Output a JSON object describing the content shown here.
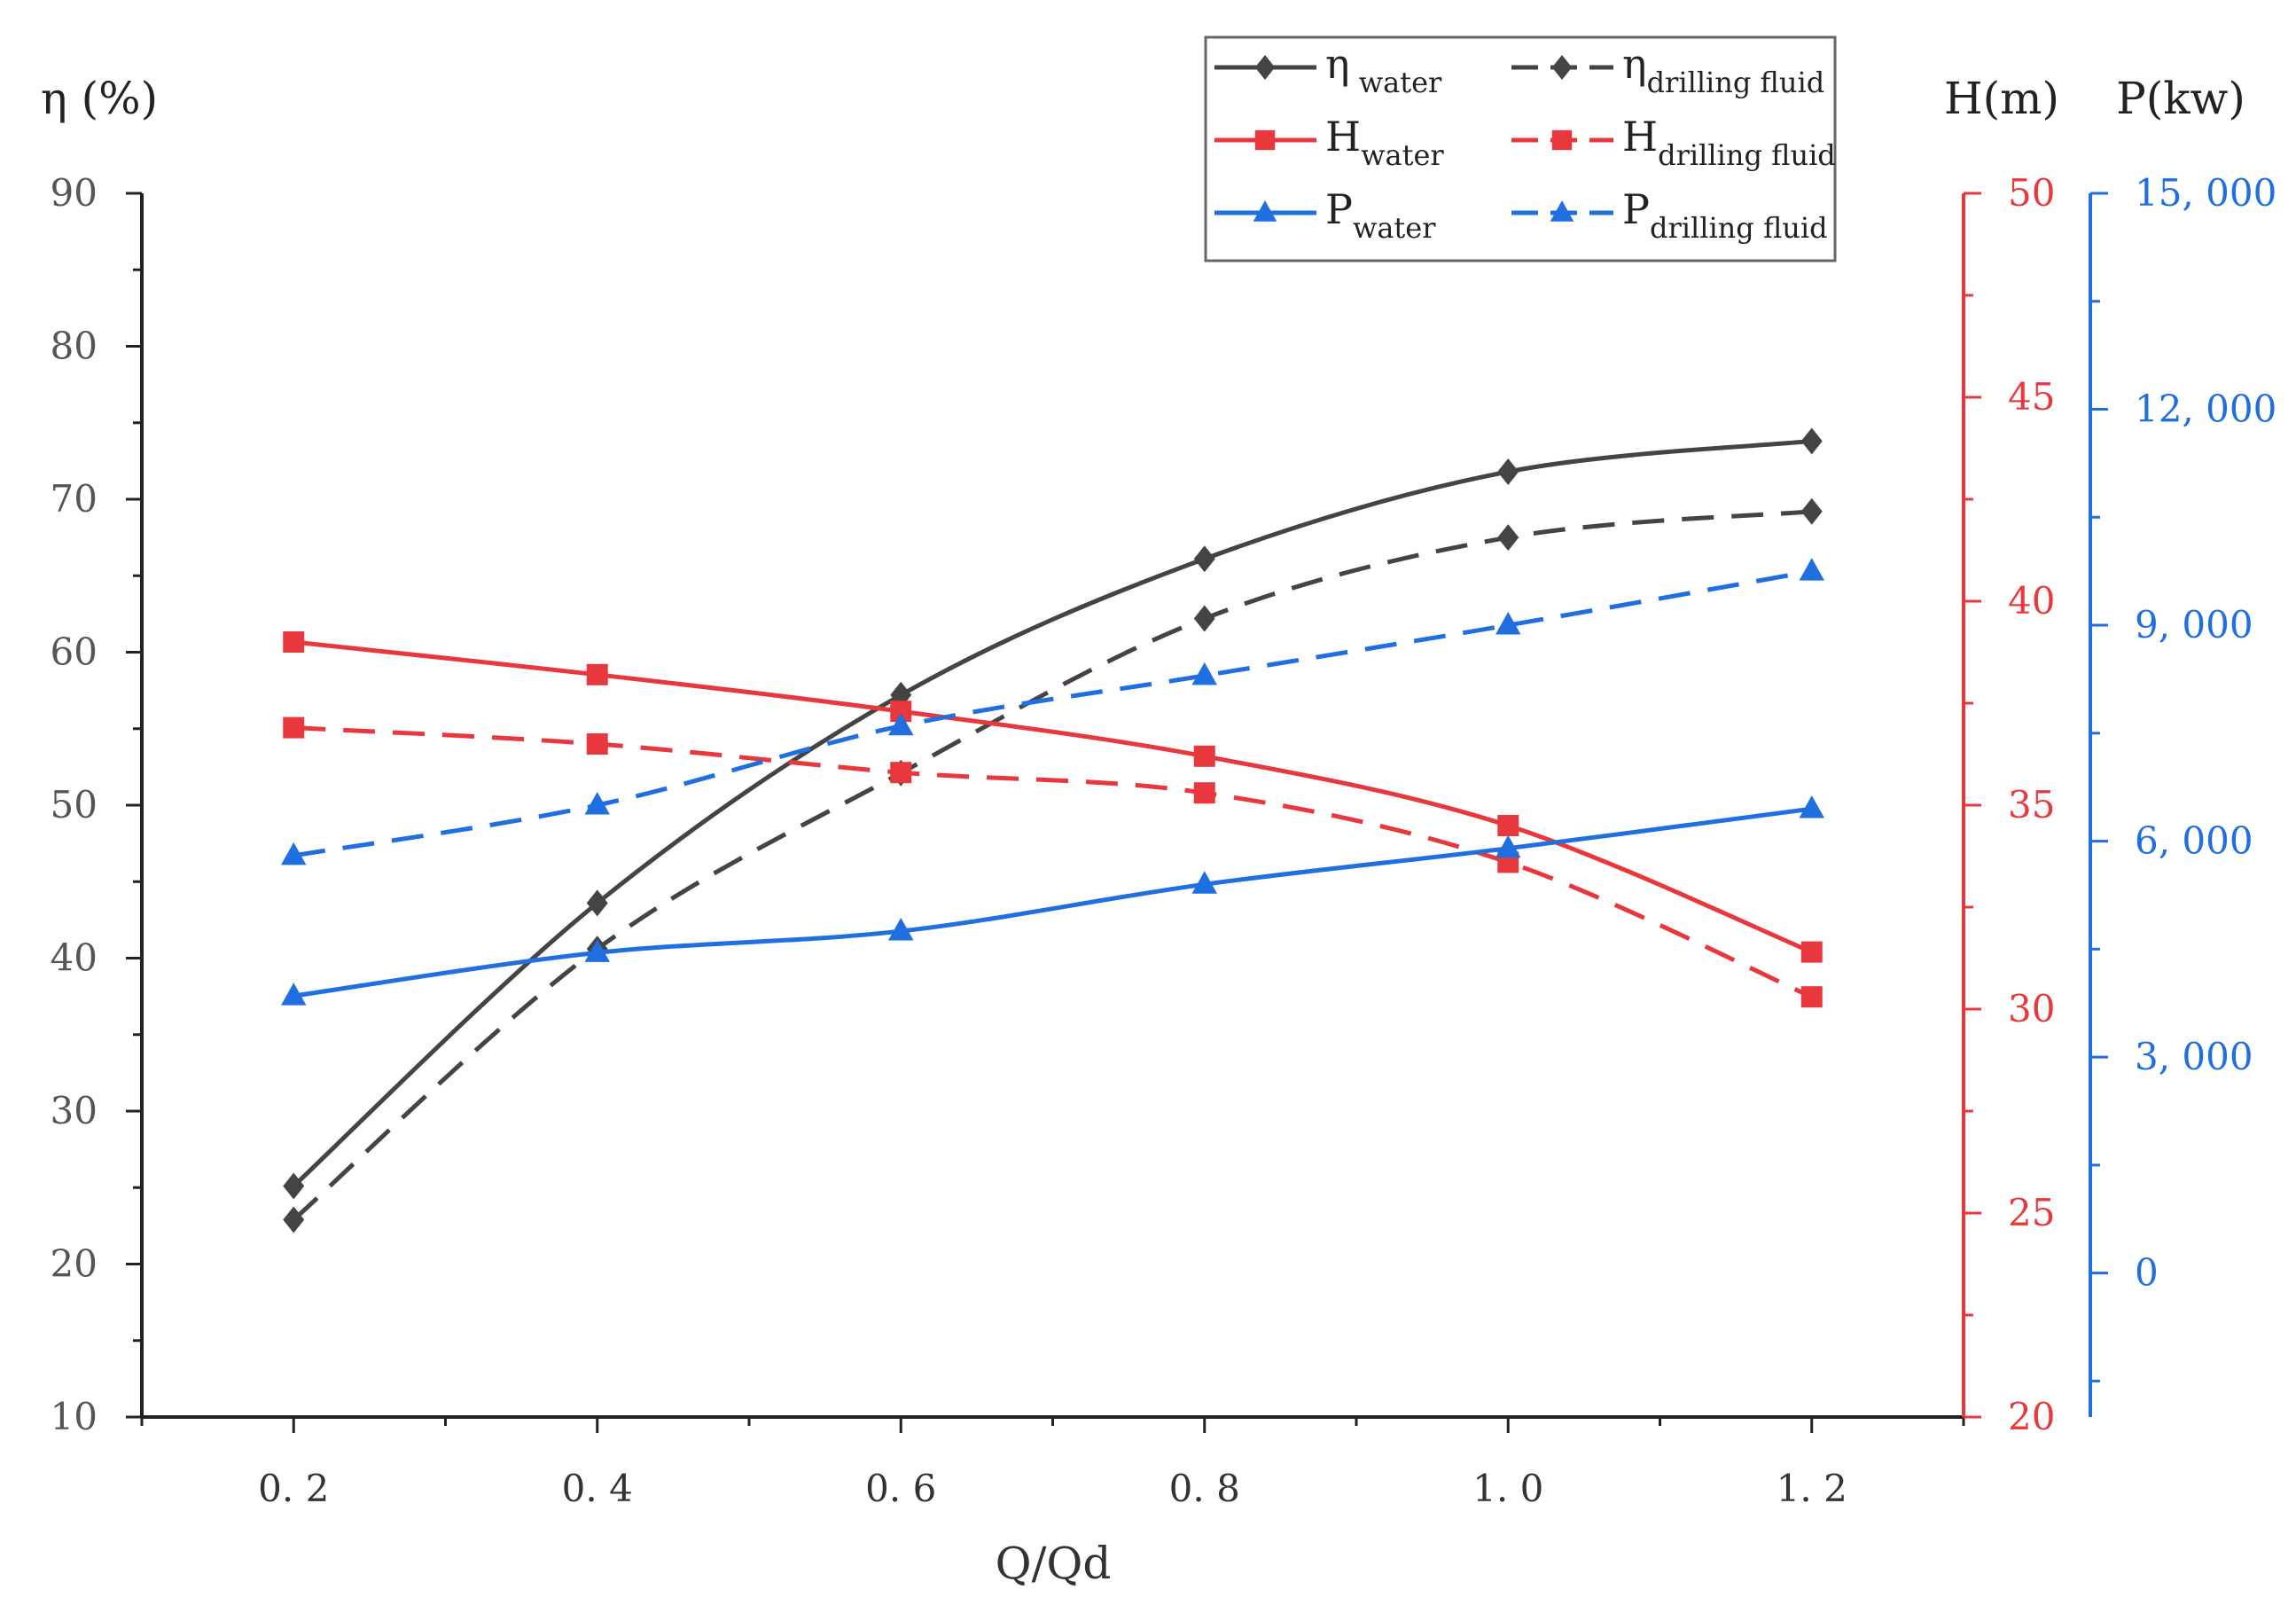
{
  "chart_data": {
    "type": "line",
    "x": [
      0.2,
      0.4,
      0.6,
      0.8,
      1.0,
      1.2
    ],
    "x_tick_labels": [
      "0. 2",
      "0. 4",
      "0. 6",
      "0. 8",
      "1. 0",
      "1. 2"
    ],
    "xlabel": "Q/Qd",
    "xlim": [
      0.1,
      1.3
    ],
    "axes": {
      "left": {
        "title": "η (%)",
        "min": 10,
        "max": 90,
        "ticks": [
          10,
          20,
          30,
          40,
          50,
          60,
          70,
          80,
          90
        ],
        "tick_labels": [
          "10",
          "20",
          "30",
          "40",
          "50",
          "60",
          "70",
          "80",
          "90"
        ],
        "color": "#333333"
      },
      "right1": {
        "title": "H(m)",
        "min": 20,
        "max": 50,
        "ticks": [
          20,
          25,
          30,
          35,
          40,
          45,
          50
        ],
        "tick_labels": [
          "20",
          "25",
          "30",
          "35",
          "40",
          "45",
          "50"
        ],
        "color": "#e8383d"
      },
      "right2": {
        "title": "P(kw)",
        "min": -2000,
        "max": 15000,
        "ticks": [
          0,
          3000,
          6000,
          9000,
          12000,
          15000
        ],
        "tick_labels": [
          "0",
          "3, 000",
          "6, 000",
          "9, 000",
          "12, 000",
          "15, 000"
        ],
        "color": "#1f6fe0"
      }
    },
    "series": [
      {
        "name": "η water",
        "main": "η",
        "sub": "water",
        "axis": "left",
        "values": [
          25.1,
          43.6,
          57.2,
          66.1,
          71.8,
          73.8
        ],
        "color": "#444444",
        "dashed": false,
        "marker": "diamond"
      },
      {
        "name": "ηdrilling fluid",
        "main": "η",
        "sub": "drilling fluid",
        "axis": "left",
        "values": [
          22.9,
          40.6,
          52.1,
          62.2,
          67.5,
          69.2
        ],
        "color": "#444444",
        "dashed": true,
        "marker": "diamond"
      },
      {
        "name": "Hwater",
        "main": "H",
        "sub": "water",
        "axis": "right1",
        "values": [
          39.0,
          38.2,
          37.3,
          36.2,
          34.5,
          31.4
        ],
        "color": "#e8383d",
        "dashed": false,
        "marker": "square"
      },
      {
        "name": "Hdrilling fluid",
        "main": "H",
        "sub": "drilling fluid",
        "axis": "right1",
        "values": [
          36.9,
          36.5,
          35.8,
          35.3,
          33.6,
          30.3
        ],
        "color": "#e8383d",
        "dashed": true,
        "marker": "square"
      },
      {
        "name": "Pwater",
        "main": "P",
        "sub": "water",
        "axis": "right2",
        "values": [
          3850,
          4450,
          4750,
          5400,
          5900,
          6450
        ],
        "color": "#1f6fe0",
        "dashed": false,
        "marker": "triangle"
      },
      {
        "name": "Pdrilling fluid",
        "main": "P",
        "sub": "drilling fluid",
        "axis": "right2",
        "values": [
          5800,
          6500,
          7600,
          8300,
          9000,
          9750
        ],
        "color": "#1f6fe0",
        "dashed": true,
        "marker": "triangle"
      }
    ],
    "legend_position": "top-right"
  }
}
